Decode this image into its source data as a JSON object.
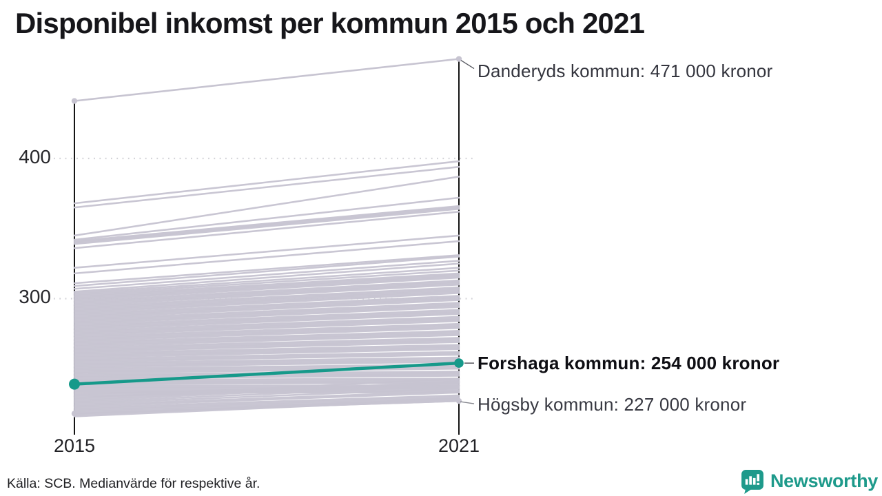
{
  "title": "Disponibel inkomst per kommun 2015 och 2021",
  "source_note": "Källa: SCB. Medianvärde för respektive år.",
  "logo": {
    "name": "Newsworthy",
    "color": "#1e9a8b"
  },
  "chart_data": {
    "type": "line",
    "variant": "slopegraph",
    "title": "Disponibel inkomst per kommun 2015 och 2021",
    "x": [
      2015,
      2021
    ],
    "x_tick_labels": [
      "2015",
      "2021"
    ],
    "y_ticks": [
      300,
      400
    ],
    "y_tick_labels": [
      "300",
      "400"
    ],
    "ylim": [
      203,
      480
    ],
    "unit": "tusen kronor",
    "grid": "dotted horizontal gridlines at y ticks",
    "legend": "none",
    "colors": {
      "highlight": "#16998a",
      "background_lines": "#c7c4d1",
      "axis": "#141414",
      "gridline": "#d2d2d7"
    },
    "highlight_series": {
      "name": "Forshaga kommun",
      "values": [
        239,
        254
      ],
      "label": "Forshaga kommun: 254 000 kronor"
    },
    "annotated_series": [
      {
        "name": "Danderyds kommun",
        "values": [
          441,
          471
        ],
        "label": "Danderyds kommun: 471 000 kronor"
      },
      {
        "name": "Högsby kommun",
        "values": [
          218,
          227
        ],
        "label": "Högsby kommun: 227 000 kronor"
      }
    ],
    "background_series": [
      [
        368,
        398
      ],
      [
        365,
        394
      ],
      [
        345,
        387
      ],
      [
        342,
        372
      ],
      [
        341,
        366
      ],
      [
        340,
        365
      ],
      [
        339,
        364
      ],
      [
        336,
        362
      ],
      [
        322,
        345
      ],
      [
        318,
        341
      ],
      [
        311,
        331
      ],
      [
        309,
        330
      ],
      [
        307,
        327
      ],
      [
        305,
        325
      ],
      [
        304,
        322
      ],
      [
        303,
        320
      ],
      [
        302,
        318
      ],
      [
        301,
        317
      ],
      [
        300,
        316
      ],
      [
        299,
        315
      ],
      [
        298,
        313
      ],
      [
        297,
        312
      ],
      [
        296,
        311
      ],
      [
        295,
        310
      ],
      [
        294,
        308
      ],
      [
        293,
        307
      ],
      [
        292,
        306
      ],
      [
        291,
        305
      ],
      [
        290,
        304
      ],
      [
        289,
        302
      ],
      [
        288,
        301
      ],
      [
        287,
        300
      ],
      [
        286,
        299
      ],
      [
        285,
        297
      ],
      [
        284,
        296
      ],
      [
        283,
        295
      ],
      [
        282,
        294
      ],
      [
        281,
        292
      ],
      [
        280,
        291
      ],
      [
        279,
        290
      ],
      [
        278,
        289
      ],
      [
        277,
        287
      ],
      [
        276,
        286
      ],
      [
        275,
        285
      ],
      [
        274,
        284
      ],
      [
        273,
        282
      ],
      [
        272,
        281
      ],
      [
        271,
        280
      ],
      [
        270,
        279
      ],
      [
        269,
        277
      ],
      [
        268,
        276
      ],
      [
        267,
        275
      ],
      [
        266,
        274
      ],
      [
        265,
        272
      ],
      [
        264,
        271
      ],
      [
        263,
        270
      ],
      [
        262,
        269
      ],
      [
        261,
        267
      ],
      [
        260,
        266
      ],
      [
        259,
        265
      ],
      [
        258,
        264
      ],
      [
        257,
        262
      ],
      [
        256,
        261
      ],
      [
        255,
        260
      ],
      [
        254,
        258
      ],
      [
        253,
        257
      ],
      [
        252,
        256
      ],
      [
        251,
        255
      ],
      [
        250,
        253
      ],
      [
        249,
        252
      ],
      [
        248,
        251
      ],
      [
        247,
        250
      ],
      [
        246,
        248
      ],
      [
        245,
        247
      ],
      [
        244,
        246
      ],
      [
        243,
        245
      ],
      [
        242,
        243
      ],
      [
        241,
        242
      ],
      [
        240,
        241
      ],
      [
        239,
        240
      ],
      [
        238,
        238
      ],
      [
        237,
        237
      ],
      [
        236,
        236
      ],
      [
        235,
        235
      ],
      [
        234,
        234
      ],
      [
        233,
        233
      ],
      [
        232,
        239
      ],
      [
        231,
        238
      ],
      [
        230,
        237
      ],
      [
        229,
        243
      ],
      [
        228,
        241
      ],
      [
        227,
        240
      ],
      [
        226,
        238
      ],
      [
        225,
        236
      ],
      [
        224,
        234
      ],
      [
        223,
        233
      ],
      [
        222,
        231
      ],
      [
        221,
        230
      ],
      [
        220,
        229
      ],
      [
        219,
        228
      ],
      [
        218,
        227
      ],
      [
        217,
        229
      ],
      [
        216,
        228
      ]
    ]
  }
}
